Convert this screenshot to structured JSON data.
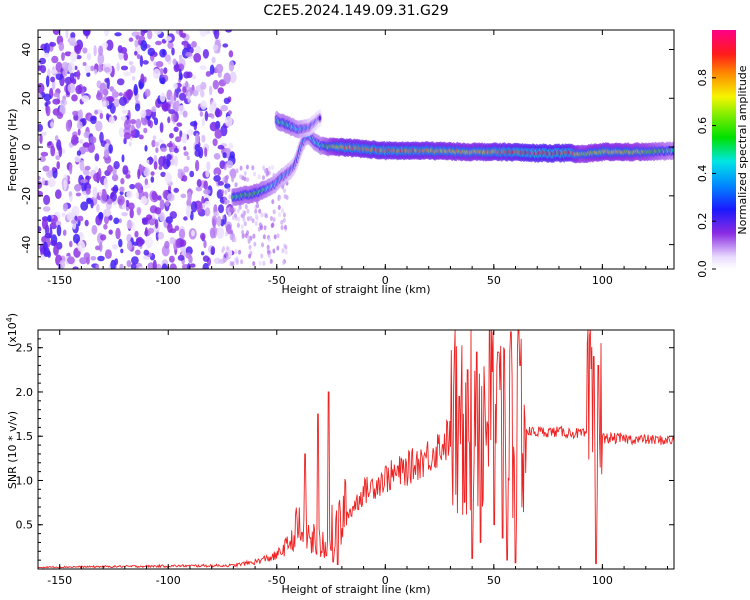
{
  "title": "C2E5.2024.149.09.31.G29",
  "colors": {
    "snr_line": "#ee2222",
    "axis": "#000000",
    "background": "#ffffff"
  },
  "chart_data": [
    {
      "type": "heatmap",
      "xlabel": "Height of straight line (km)",
      "ylabel": "Frequency (Hz)",
      "xlim": [
        -160,
        133
      ],
      "ylim": [
        -50,
        48
      ],
      "x_ticks": [
        -150,
        -100,
        -50,
        0,
        50,
        100
      ],
      "y_ticks": [
        -40,
        -20,
        0,
        20,
        40
      ],
      "colorbar": {
        "label": "Normalized spectral amplitude",
        "range": [
          0,
          1
        ],
        "ticks": [
          "0.0",
          "0.2",
          "0.4",
          "0.6",
          "0.8"
        ],
        "tick_values": [
          0.0,
          0.2,
          0.4,
          0.6,
          0.8
        ],
        "colormap": "rainbow (white-purple-blue-cyan-green-yellow-red-magenta)"
      },
      "noise_region": {
        "x_range": [
          -160,
          -70
        ],
        "f_range": [
          -50,
          48
        ],
        "amplitude": 0.15
      },
      "ridge": [
        {
          "x": -70,
          "f": -20.5,
          "a": 0.55
        },
        {
          "x": -60,
          "f": -19,
          "a": 0.6
        },
        {
          "x": -52,
          "f": -16,
          "a": 0.45
        },
        {
          "x": -42,
          "f": -8,
          "a": 0.3
        },
        {
          "x": -38,
          "f": 2,
          "a": 0.35
        },
        {
          "x": -36,
          "f": 5,
          "a": 0.45
        },
        {
          "x": -30,
          "f": 0.5,
          "a": 0.5
        },
        {
          "x": -25,
          "f": 0,
          "a": 0.7
        },
        {
          "x": -20,
          "f": 0,
          "a": 0.85
        },
        {
          "x": 0,
          "f": -1.5,
          "a": 0.9
        },
        {
          "x": 20,
          "f": -1.5,
          "a": 0.85
        },
        {
          "x": 40,
          "f": -2,
          "a": 0.8
        },
        {
          "x": 55,
          "f": -2,
          "a": 0.9
        },
        {
          "x": 70,
          "f": -2.5,
          "a": 1.0
        },
        {
          "x": 85,
          "f": -2.5,
          "a": 0.95
        },
        {
          "x": 90,
          "f": -3,
          "a": 0.7
        },
        {
          "x": 100,
          "f": -2,
          "a": 0.8
        },
        {
          "x": 120,
          "f": -2,
          "a": 0.7
        },
        {
          "x": 133,
          "f": -1.5,
          "a": 0.5
        }
      ],
      "branch": [
        {
          "x": -50,
          "f": 11,
          "a": 0.5
        },
        {
          "x": -45,
          "f": 9,
          "a": 0.55
        },
        {
          "x": -40,
          "f": 7,
          "a": 0.45
        },
        {
          "x": -35,
          "f": 8,
          "a": 0.3
        },
        {
          "x": -30,
          "f": 12,
          "a": 0.2
        }
      ]
    },
    {
      "type": "line",
      "xlabel": "Height of straight line (km)",
      "ylabel": "SNR (10 * v/v)",
      "y_multiplier": "(x10",
      "y_multiplier_exp": "4",
      "y_multiplier_close": ")",
      "xlim": [
        -160,
        133
      ],
      "ylim": [
        0,
        27000
      ],
      "x_ticks": [
        -150,
        -100,
        -50,
        0,
        50,
        100
      ],
      "y_ticks": [
        5000,
        10000,
        15000,
        20000,
        25000
      ],
      "y_tick_labels": [
        "0.5",
        "1.0",
        "1.5",
        "2.0",
        "2.5"
      ],
      "series": [
        {
          "envelope": [
            {
              "x": -160,
              "y": 200
            },
            {
              "x": -70,
              "y": 400
            },
            {
              "x": -60,
              "y": 800
            },
            {
              "x": -50,
              "y": 1500
            },
            {
              "x": -40,
              "y": 4000
            },
            {
              "x": -30,
              "y": 2500
            },
            {
              "x": -20,
              "y": 5000
            },
            {
              "x": -10,
              "y": 8500
            },
            {
              "x": 0,
              "y": 10000
            },
            {
              "x": 10,
              "y": 11000
            },
            {
              "x": 20,
              "y": 12500
            },
            {
              "x": 30,
              "y": 14500
            },
            {
              "x": 40,
              "y": 15500
            },
            {
              "x": 50,
              "y": 15500
            },
            {
              "x": 60,
              "y": 15500
            },
            {
              "x": 80,
              "y": 15500
            },
            {
              "x": 90,
              "y": 15300
            },
            {
              "x": 100,
              "y": 14800
            },
            {
              "x": 133,
              "y": 14500
            }
          ],
          "spikes": [
            {
              "x": -37,
              "y": 13000
            },
            {
              "x": -31,
              "y": 17500
            },
            {
              "x": -26,
              "y": 20000
            },
            {
              "x": -22,
              "y": 500
            },
            {
              "x": -24,
              "y": 800
            },
            {
              "x": 34,
              "y": 19500
            },
            {
              "x": 38,
              "y": 22500
            },
            {
              "x": 40,
              "y": 1200
            },
            {
              "x": 42,
              "y": 24500
            },
            {
              "x": 44,
              "y": 3000
            },
            {
              "x": 48,
              "y": 27000
            },
            {
              "x": 50,
              "y": 5000
            },
            {
              "x": 52,
              "y": 24500
            },
            {
              "x": 54,
              "y": 3500
            },
            {
              "x": 56,
              "y": 1000
            },
            {
              "x": 58,
              "y": 26800
            },
            {
              "x": 60,
              "y": 700
            },
            {
              "x": 62,
              "y": 23000
            },
            {
              "x": 96,
              "y": 24000
            },
            {
              "x": 97,
              "y": 600
            },
            {
              "x": 98,
              "y": 23000
            }
          ]
        }
      ]
    }
  ]
}
